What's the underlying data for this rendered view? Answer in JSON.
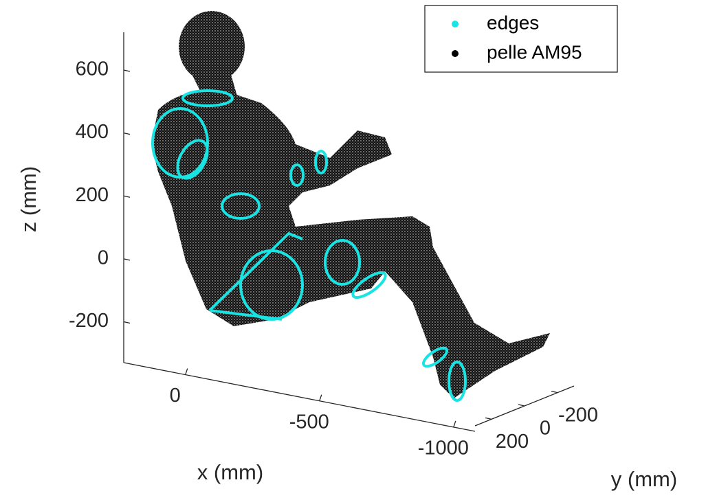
{
  "chart_data": {
    "type": "scatter3d",
    "series": [
      {
        "name": "edges",
        "color": "#19e3e3"
      },
      {
        "name": "pelle AM95",
        "color": "#000000"
      }
    ],
    "xlabel": "x (mm)",
    "ylabel": "y (mm)",
    "zlabel": "z (mm)",
    "xlim": [
      230,
      -1080
    ],
    "ylim": [
      300,
      -300
    ],
    "zlim": [
      -330,
      720
    ],
    "xticks": [
      0,
      -500,
      -1000
    ],
    "yticks": [
      200,
      0,
      -200
    ],
    "zticks": [
      -200,
      0,
      200,
      400,
      600
    ],
    "legend": "upper right"
  }
}
